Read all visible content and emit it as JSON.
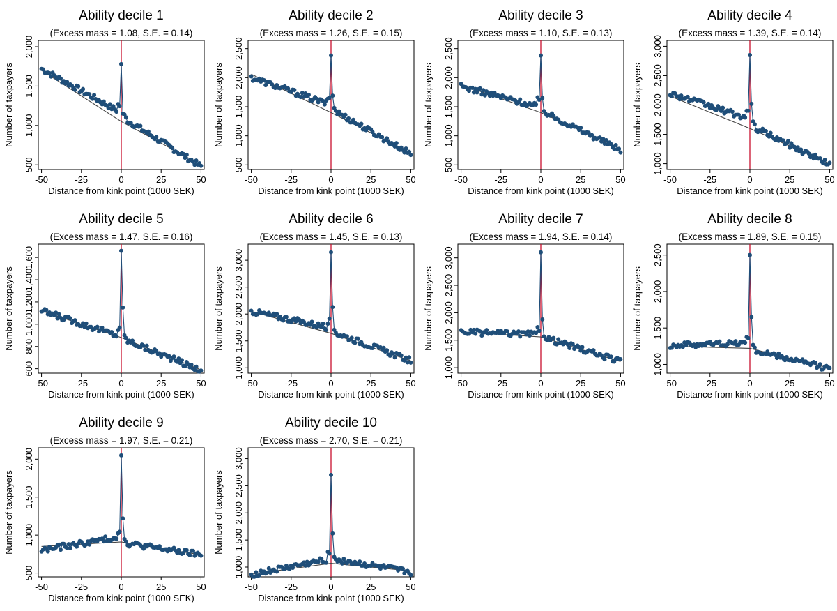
{
  "common": {
    "xlabel": "Distance from kink point (1000 SEK)",
    "ylabel": "Number of taxpayers",
    "x_ticks": [
      "-50",
      "-25",
      "0",
      "25",
      "50"
    ],
    "x_tick_values": [
      -50,
      -25,
      0,
      25,
      50
    ],
    "xlim": [
      -52,
      52
    ],
    "colors": {
      "points": "#1f4e79",
      "line": "#1f4e79",
      "kink": "#c8102e",
      "frame": "#000000"
    }
  },
  "chart_data": [
    {
      "type": "scatter",
      "title": "Ability decile 1",
      "subtitle": "(Excess mass = 1.08, S.E. = 0.14)",
      "ylim": [
        440,
        2080
      ],
      "yticks": [
        500,
        1000,
        1500,
        2000
      ],
      "ytick_labels": [
        "500",
        "1,000",
        "1,500",
        "2,000"
      ],
      "peak": [
        0,
        1780
      ],
      "peak_right": [
        1,
        1150
      ],
      "left_start": 1720,
      "left_end": 1160,
      "right_start": 1100,
      "right_end": 480,
      "cf_left": 1700,
      "cf_mid": 1050,
      "cf_right": 500
    },
    {
      "type": "scatter",
      "title": "Ability decile 2",
      "subtitle": "(Excess mass = 1.26, S.E. = 0.15)",
      "ylim": [
        420,
        2640
      ],
      "yticks": [
        500,
        1000,
        1500,
        2000,
        2500
      ],
      "ytick_labels": [
        "500",
        "1,000",
        "1,500",
        "2,000",
        "2,500"
      ],
      "peak": [
        0,
        2380
      ],
      "peak_right": [
        1,
        1690
      ],
      "left_start": 2000,
      "left_end": 1530,
      "right_start": 1450,
      "right_end": 690,
      "cf_left": 2060,
      "cf_mid": 1400,
      "cf_right": 700
    },
    {
      "type": "scatter",
      "title": "Ability decile 3",
      "subtitle": "(Excess mass = 1.10, S.E. = 0.13)",
      "ylim": [
        420,
        2640
      ],
      "yticks": [
        500,
        1000,
        1500,
        2000,
        2500
      ],
      "ytick_labels": [
        "500",
        "1,000",
        "1,500",
        "2,000",
        "2,500"
      ],
      "peak": [
        0,
        2380
      ],
      "peak_right": [
        1,
        1650
      ],
      "left_start": 1850,
      "left_end": 1490,
      "right_start": 1420,
      "right_end": 760,
      "cf_left": 1880,
      "cf_mid": 1400,
      "cf_right": 780
    },
    {
      "type": "scatter",
      "title": "Ability decile 4",
      "subtitle": "(Excess mass = 1.39, S.E. = 0.14)",
      "ylim": [
        900,
        3100
      ],
      "yticks": [
        1000,
        1500,
        2000,
        2500,
        3000
      ],
      "ytick_labels": [
        "1,000",
        "1,500",
        "2,000",
        "2,500",
        "3,000"
      ],
      "peak": [
        0,
        2850
      ],
      "peak_right": [
        1,
        2020
      ],
      "left_start": 2200,
      "left_end": 1760,
      "right_start": 1640,
      "right_end": 990,
      "cf_left": 2150,
      "cf_mid": 1600,
      "cf_right": 1000
    },
    {
      "type": "scatter",
      "title": "Ability decile 5",
      "subtitle": "(Excess mass = 1.47, S.E. = 0.16)",
      "ylim": [
        560,
        1720
      ],
      "yticks": [
        600,
        800,
        1000,
        1200,
        1400,
        1600
      ],
      "ytick_labels": [
        "600",
        "800",
        "1,000",
        "1,200",
        "1,400",
        "1,600"
      ],
      "peak": [
        0,
        1660
      ],
      "peak_right": [
        1,
        1150
      ],
      "left_start": 1120,
      "left_end": 890,
      "right_start": 870,
      "right_end": 585,
      "cf_left": 1120,
      "cf_mid": 880,
      "cf_right": 590
    },
    {
      "type": "scatter",
      "title": "Ability decile 6",
      "subtitle": "(Excess mass = 1.45, S.E. = 0.13)",
      "ylim": [
        900,
        3300
      ],
      "yticks": [
        1000,
        1500,
        2000,
        2500,
        3000
      ],
      "ytick_labels": [
        "1,000",
        "1,500",
        "2,000",
        "2,500",
        "3,000"
      ],
      "peak": [
        0,
        3150
      ],
      "peak_right": [
        1,
        2130
      ],
      "left_start": 2050,
      "left_end": 1740,
      "right_start": 1670,
      "right_end": 1130,
      "cf_left": 2050,
      "cf_mid": 1640,
      "cf_right": 1130
    },
    {
      "type": "scatter",
      "title": "Ability decile 7",
      "subtitle": "(Excess mass = 1.94, S.E. = 0.14)",
      "ylim": [
        900,
        3250
      ],
      "yticks": [
        1000,
        1500,
        2000,
        2500,
        3000
      ],
      "ytick_labels": [
        "1,000",
        "1,500",
        "2,000",
        "2,500",
        "3,000"
      ],
      "peak": [
        0,
        3100
      ],
      "peak_right": [
        1,
        1880
      ],
      "left_start": 1650,
      "left_end": 1600,
      "right_start": 1560,
      "right_end": 1110,
      "cf_left": 1650,
      "cf_mid": 1560,
      "cf_right": 1110
    },
    {
      "type": "scatter",
      "title": "Ability decile 8",
      "subtitle": "(Excess mass = 1.89, S.E. = 0.15)",
      "ylim": [
        880,
        2650
      ],
      "yticks": [
        1000,
        1500,
        2000,
        2500
      ],
      "ytick_labels": [
        "1,000",
        "1,500",
        "2,000",
        "2,500"
      ],
      "peak": [
        0,
        2500
      ],
      "peak_right": [
        1,
        1650
      ],
      "left_start": 1260,
      "left_end": 1300,
      "right_start": 1200,
      "right_end": 940,
      "cf_left": 1250,
      "cf_mid": 1220,
      "cf_right": 950
    },
    {
      "type": "scatter",
      "title": "Ability decile 9",
      "subtitle": "(Excess mass = 1.97, S.E. = 0.21)",
      "ylim": [
        450,
        2150
      ],
      "yticks": [
        500,
        1000,
        1500,
        2000
      ],
      "ytick_labels": [
        "500",
        "1,000",
        "1,500",
        "2,000"
      ],
      "peak": [
        0,
        2050
      ],
      "peak_right": [
        1,
        1220
      ],
      "left_start": 800,
      "left_end": 980,
      "right_start": 900,
      "right_end": 740,
      "cf_left": 850,
      "cf_mid": 910,
      "cf_right": 740
    },
    {
      "type": "scatter",
      "title": "Ability decile 10",
      "subtitle": "(Excess mass = 2.70, S.E. = 0.21)",
      "ylim": [
        820,
        3200
      ],
      "yticks": [
        1000,
        1500,
        2000,
        2500,
        3000
      ],
      "ytick_labels": [
        "1,000",
        "1,500",
        "2,000",
        "2,500",
        "3,000"
      ],
      "peak": [
        0,
        2700
      ],
      "peak_right": [
        1,
        1620
      ],
      "left_start": 860,
      "left_end": 1150,
      "right_start": 1150,
      "right_end": 900,
      "cf_left": 870,
      "cf_mid": 1070,
      "cf_right": 930
    }
  ]
}
